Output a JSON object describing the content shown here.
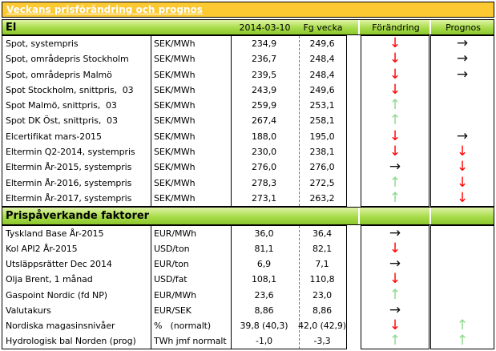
{
  "title": "Veckans prisförändring och prognos",
  "columns": {
    "date": "2014-03-10",
    "prev": "Fg vecka",
    "change": "Förändring",
    "forecast": "Prognos"
  },
  "icons": {
    "down": "↓",
    "up": "↑",
    "right": "→"
  },
  "colors": {
    "title_bar": "#fcc933",
    "green_top": "#dff3a5",
    "green_mid": "#a8dc4a",
    "green_bottom": "#8bc72c",
    "arrow_red": "#ff0000",
    "arrow_green": "#8fd98f",
    "arrow_black": "#101010"
  },
  "sections": [
    {
      "name": "El",
      "rows": [
        {
          "label": "Spot, systempris",
          "unit": "SEK/MWh",
          "current": "234,9",
          "previous": "249,6",
          "change": "down",
          "forecast": "right"
        },
        {
          "label": "Spot, områdepris Stockholm",
          "unit": "SEK/MWh",
          "current": "236,7",
          "previous": "248,4",
          "change": "down",
          "forecast": "right"
        },
        {
          "label": "Spot, områdepris Malmö",
          "unit": "SEK/MWh",
          "current": "239,5",
          "previous": "248,4",
          "change": "down",
          "forecast": "right"
        },
        {
          "label": "Spot Stockholm, snittpris,  03",
          "unit": "SEK/MWh",
          "current": "243,9",
          "previous": "249,6",
          "change": "down",
          "forecast": ""
        },
        {
          "label": "Spot Malmö, snittpris,  03",
          "unit": "SEK/MWh",
          "current": "259,9",
          "previous": "253,1",
          "change": "up",
          "forecast": ""
        },
        {
          "label": "Spot DK Öst, snittpris,  03",
          "unit": "SEK/MWh",
          "current": "267,4",
          "previous": "258,1",
          "change": "up",
          "forecast": ""
        },
        {
          "label": "Elcertifikat mars-2015",
          "unit": "SEK/MWh",
          "current": "188,0",
          "previous": "195,0",
          "change": "down",
          "forecast": "right"
        },
        {
          "label": "Eltermin Q2-2014, systempris",
          "unit": "SEK/MWh",
          "current": "230,0",
          "previous": "238,1",
          "change": "down",
          "forecast": "down"
        },
        {
          "label": "Eltermin År-2015, systempris",
          "unit": "SEK/MWh",
          "current": "276,0",
          "previous": "276,0",
          "change": "right",
          "forecast": "down"
        },
        {
          "label": "Eltermin År-2016, systempris",
          "unit": "SEK/MWh",
          "current": "278,3",
          "previous": "272,5",
          "change": "up",
          "forecast": "down"
        },
        {
          "label": "Eltermin År-2017, systempris",
          "unit": "SEK/MWh",
          "current": "273,1",
          "previous": "263,2",
          "change": "up",
          "forecast": "down"
        }
      ]
    },
    {
      "name": "Prispåverkande faktorer",
      "rows": [
        {
          "label": "Tyskland Base År-2015",
          "unit": "EUR/MWh",
          "current": "36,0",
          "previous": "36,4",
          "change": "right",
          "forecast": ""
        },
        {
          "label": "Kol API2 År-2015",
          "unit": "USD/ton",
          "current": "81,1",
          "previous": "82,1",
          "change": "down",
          "forecast": ""
        },
        {
          "label": "Utsläppsrätter Dec 2014",
          "unit": "EUR/ton",
          "current": "6,9",
          "previous": "7,1",
          "change": "right",
          "forecast": ""
        },
        {
          "label": "Olja Brent, 1 månad",
          "unit": "USD/fat",
          "current": "108,1",
          "previous": "110,8",
          "change": "down",
          "forecast": ""
        },
        {
          "label": "Gaspoint Nordic (fd NP)",
          "unit": "EUR/MWh",
          "current": "23,6",
          "previous": "23,0",
          "change": "up",
          "forecast": ""
        },
        {
          "label": "Valutakurs",
          "unit": "EUR/SEK",
          "current": "8,86",
          "previous": "8,86",
          "change": "right",
          "forecast": ""
        },
        {
          "label": "Nordiska magasinsnivåer",
          "unit": "%   (normalt)",
          "current": "39,8 (40,3)",
          "previous": "42,0 (42,9)",
          "change": "down",
          "forecast": "up"
        },
        {
          "label": "Hydrologisk bal Norden (prog)",
          "unit": "TWh jmf normalt",
          "current": "-1,0",
          "previous": "-3,3",
          "change": "up",
          "forecast": "up"
        }
      ]
    }
  ]
}
